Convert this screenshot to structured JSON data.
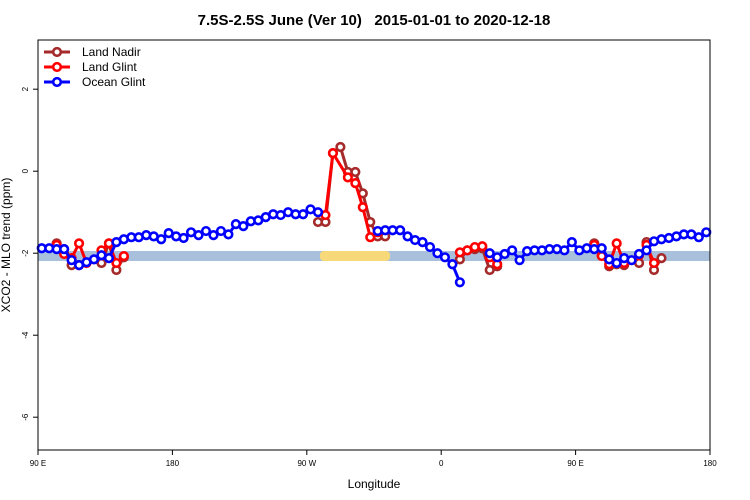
{
  "chart_data": {
    "type": "line",
    "title": "7.5S-2.5S June (Ver 10)   2015-01-01 to 2020-12-18",
    "x_label": "Longitude",
    "y_label": "XCO2 - MLO trend (ppm)",
    "xlim": [
      90,
      540
    ],
    "ylim": [
      -6.8,
      3.2
    ],
    "xticks": [
      {
        "value": 90,
        "label": "90 E"
      },
      {
        "value": 180,
        "label": "180"
      },
      {
        "value": 270,
        "label": "90 W"
      },
      {
        "value": 360,
        "label": "0"
      },
      {
        "value": 450,
        "label": "90 E"
      },
      {
        "value": 540,
        "label": "180"
      }
    ],
    "yticks": [
      -6,
      -4,
      -2,
      0,
      2
    ],
    "legend": "top-left",
    "series": [
      {
        "name": "Land Nadir",
        "color": "#a52a2a",
        "x": [
          102.5,
          107.5,
          112.5,
          117.5,
          127.5,
          132.5,
          137.5,
          142.5,
          147.5,
          200,
          277.5,
          282.5,
          287.5,
          292.5,
          297.5,
          302.5,
          307.5,
          312.5,
          317.5,
          322.5,
          350,
          372.5,
          377.5,
          382.5,
          387.5,
          392.5,
          397.5,
          430,
          462.5,
          467.5,
          472.5,
          477.5,
          482.5,
          487.5,
          492.5,
          497.5,
          502.5,
          507.5
        ],
        "values": [
          -1.76,
          -1.9,
          -2.29,
          -2.29,
          null,
          -2.24,
          -1.76,
          -2.41,
          -2.1,
          null,
          -1.24,
          -1.24,
          0.44,
          0.59,
          -0.02,
          -0.02,
          -0.54,
          -1.24,
          -1.59,
          -1.59,
          null,
          -2.15,
          -1.93,
          -1.9,
          -1.88,
          -2.41,
          -2.32,
          null,
          -1.76,
          -2.05,
          -2.32,
          -2.27,
          -2.29,
          null,
          -2.24,
          -1.73,
          -2.41,
          -2.12
        ]
      },
      {
        "name": "Land Glint",
        "color": "#ff0000",
        "x": [
          102.5,
          107.5,
          112.5,
          117.5,
          122.5,
          127.5,
          132.5,
          137.5,
          142.5,
          147.5,
          200,
          282.5,
          287.5,
          297.5,
          302.5,
          307.5,
          312.5,
          317.5,
          350,
          372.5,
          377.5,
          382.5,
          387.5,
          392.5,
          397.5,
          430,
          462.5,
          467.5,
          472.5,
          477.5,
          482.5,
          487.5,
          492.5,
          497.5,
          502.5
        ],
        "values": [
          -1.8,
          -2.02,
          -2.12,
          -1.76,
          -2.24,
          null,
          -1.93,
          -1.76,
          -2.24,
          -2.07,
          null,
          -1.07,
          0.44,
          -0.15,
          -0.29,
          -0.88,
          -1.61,
          -1.49,
          null,
          -1.98,
          -1.93,
          -1.85,
          -1.83,
          -2.1,
          -2.27,
          null,
          -1.8,
          -2.07,
          -2.27,
          -1.76,
          -2.24,
          null,
          -2.05,
          -1.8,
          -2.24
        ]
      },
      {
        "name": "Ocean Glint",
        "color": "#0000ff",
        "x": [
          92.5,
          97.5,
          102.5,
          107.5,
          112.5,
          117.5,
          122.5,
          127.5,
          132.5,
          137.5,
          142.5,
          147.5,
          152.5,
          157.5,
          162.5,
          167.5,
          172.5,
          177.5,
          182.5,
          187.5,
          192.5,
          197.5,
          202.5,
          207.5,
          212.5,
          217.5,
          222.5,
          227.5,
          232.5,
          237.5,
          242.5,
          247.5,
          252.5,
          257.5,
          262.5,
          267.5,
          272.5,
          277.5,
          282.5,
          287.5,
          292.5,
          297.5,
          302.5,
          307.5,
          312.5,
          317.5,
          322.5,
          327.5,
          332.5,
          337.5,
          342.5,
          347.5,
          352.5,
          357.5,
          362.5,
          367.5,
          372.5,
          377.5,
          382.5,
          387.5,
          392.5,
          397.5,
          402.5,
          407.5,
          412.5,
          417.5,
          422.5,
          427.5,
          432.5,
          437.5,
          442.5,
          447.5,
          452.5,
          457.5,
          462.5,
          467.5,
          472.5,
          477.5,
          482.5,
          487.5,
          492.5,
          497.5,
          502.5,
          507.5,
          512.5,
          517.5,
          522.5,
          527.5,
          532.5,
          537.5
        ],
        "values": [
          -1.88,
          -1.88,
          -1.9,
          -1.9,
          -2.17,
          -2.29,
          -2.22,
          -2.15,
          -2.05,
          -2.12,
          -1.73,
          -1.66,
          -1.61,
          -1.61,
          -1.56,
          -1.59,
          -1.66,
          -1.51,
          -1.59,
          -1.63,
          -1.49,
          -1.56,
          -1.46,
          -1.56,
          -1.46,
          -1.54,
          -1.29,
          -1.34,
          -1.22,
          -1.2,
          -1.12,
          -1.05,
          -1.07,
          -1.0,
          -1.05,
          -1.05,
          -0.93,
          -1.0,
          null,
          null,
          null,
          null,
          null,
          null,
          null,
          -1.46,
          -1.44,
          -1.44,
          -1.44,
          -1.59,
          -1.68,
          -1.73,
          -1.85,
          -2.0,
          -2.1,
          -2.27,
          -2.71,
          null,
          null,
          null,
          -2.0,
          -2.1,
          -2.02,
          -1.93,
          -2.17,
          -1.95,
          -1.93,
          -1.93,
          -1.9,
          -1.9,
          -1.93,
          -1.73,
          -1.93,
          -1.88,
          -1.9,
          -1.88,
          -2.15,
          -2.24,
          -2.12,
          -2.17,
          -2.02,
          -1.93,
          -1.71,
          -1.66,
          -1.63,
          -1.59,
          -1.54,
          -1.54,
          -1.61,
          -1.49
        ]
      }
    ]
  }
}
